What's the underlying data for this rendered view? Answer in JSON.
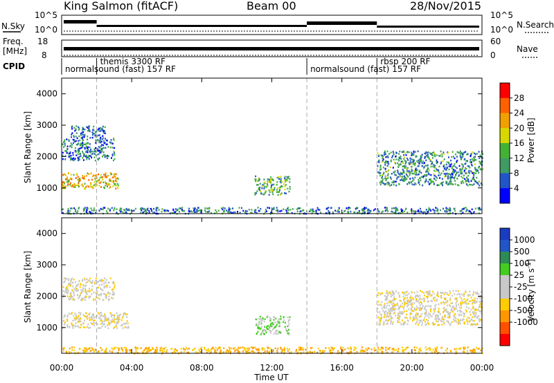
{
  "header": {
    "title_left": "King Salmon (fitACF)",
    "title_center": "Beam 00",
    "title_right": "28/Nov/2015"
  },
  "top_panels": {
    "nsky_label": "N.Sky",
    "nsky_ticks": [
      "10^5",
      "10^0"
    ],
    "nsearch_label": "N.Search",
    "nsearch_ticks": [
      "10^5",
      "10^0"
    ],
    "freq_label": "Freq.",
    "freq_unit": "[MHz]",
    "freq_ticks": [
      "18",
      "8"
    ],
    "nave_label": "Nave",
    "nave_ticks": [
      "60",
      "0"
    ],
    "cpid_label": "CPID"
  },
  "cpid_segments": [
    {
      "label": "normalsound (fast) 157 RF",
      "start_hour": 0.0,
      "end_hour": 14.0,
      "row": 2
    },
    {
      "label": "themis 3300 RF",
      "start_hour": 2.0,
      "end_hour": 14.0,
      "row": 1
    },
    {
      "label": "normalsound (fast) 157 RF",
      "start_hour": 14.0,
      "end_hour": 24.0,
      "row": 2
    },
    {
      "label": "rbsp 200 RF",
      "start_hour": 18.0,
      "end_hour": 24.0,
      "row": 1
    }
  ],
  "colors": {
    "power_scale": [
      "#0000ff",
      "#2255c8",
      "#3f9b63",
      "#43b234",
      "#d8d800",
      "#f0a000",
      "#ff6000",
      "#ff0000"
    ],
    "velocity_scale": [
      "#ff0000",
      "#ff5000",
      "#ff9800",
      "#ffcc00",
      "#c8c8c8",
      "#c8c8c8",
      "#44cc22",
      "#2e8b57",
      "#2255c8",
      "#1a3cc0"
    ]
  },
  "chart_data": [
    {
      "type": "heatmap",
      "name": "power",
      "xlabel": "",
      "ylabel": "Slant Range [km]",
      "x_range_hours": [
        0,
        24
      ],
      "xlim": [
        "00:00",
        "00:00"
      ],
      "ylim": [
        180,
        4500
      ],
      "y_ticks": [
        1000,
        2000,
        3000,
        4000
      ],
      "colorbar": {
        "label": "Power [dB]",
        "range": [
          0,
          32
        ],
        "ticks": [
          "4",
          "8",
          "12",
          "16",
          "20",
          "24",
          "28"
        ]
      },
      "reference_lines_hours": [
        2,
        14,
        18
      ],
      "scatter_regions": [
        {
          "start_hour": 0.0,
          "end_hour": 3.2,
          "range_km": [
            1000,
            1500
          ],
          "typical_db": 20
        },
        {
          "start_hour": 0.0,
          "end_hour": 3.0,
          "range_km": [
            1900,
            2600
          ],
          "typical_db": 8
        },
        {
          "start_hour": 0.5,
          "end_hour": 2.5,
          "range_km": [
            2600,
            3000
          ],
          "typical_db": 6
        },
        {
          "start_hour": 11.0,
          "end_hour": 13.0,
          "range_km": [
            800,
            1400
          ],
          "typical_db": 12
        },
        {
          "start_hour": 18.0,
          "end_hour": 24.0,
          "range_km": [
            1100,
            2200
          ],
          "typical_db": 10
        },
        {
          "start_hour": 0.0,
          "end_hour": 24.0,
          "range_km": [
            200,
            400
          ],
          "typical_db": 8
        }
      ]
    },
    {
      "type": "heatmap",
      "name": "velocity",
      "xlabel": "Time UT",
      "ylabel": "Slant Range [km]",
      "x_range_hours": [
        0,
        24
      ],
      "x_ticks": [
        "00:00",
        "04:00",
        "08:00",
        "12:00",
        "16:00",
        "20:00",
        "00:00"
      ],
      "ylim": [
        180,
        4500
      ],
      "y_ticks": [
        1000,
        2000,
        3000,
        4000
      ],
      "colorbar": {
        "label": "Velocity [m s^-1]",
        "ticks": [
          "1000",
          "500",
          "100",
          "25",
          "-25",
          "-100",
          "-500",
          "-1000"
        ]
      },
      "reference_lines_hours": [
        2,
        14,
        18
      ],
      "scatter_regions": [
        {
          "start_hour": 0.0,
          "end_hour": 3.8,
          "range_km": [
            1000,
            1500
          ],
          "typical_ms": 0
        },
        {
          "start_hour": 0.0,
          "end_hour": 3.0,
          "range_km": [
            1900,
            2600
          ],
          "typical_ms": 0
        },
        {
          "start_hour": 11.0,
          "end_hour": 13.0,
          "range_km": [
            800,
            1400
          ],
          "typical_ms": 100
        },
        {
          "start_hour": 18.0,
          "end_hour": 24.0,
          "range_km": [
            1100,
            2200
          ],
          "typical_ms": 0
        },
        {
          "start_hour": 0.0,
          "end_hour": 24.0,
          "range_km": [
            200,
            400
          ],
          "typical_ms": -100
        }
      ]
    }
  ]
}
